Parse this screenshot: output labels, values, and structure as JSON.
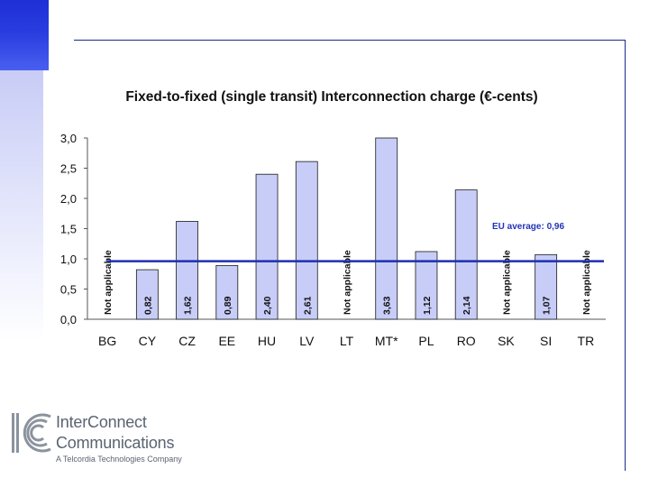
{
  "chart_data": {
    "type": "bar",
    "title": "Fixed-to-fixed (single transit) Interconnection charge (€-cents)",
    "categories": [
      "BG",
      "CY",
      "CZ",
      "EE",
      "HU",
      "LV",
      "LT",
      "MT*",
      "PL",
      "RO",
      "SK",
      "SI",
      "TR"
    ],
    "values": [
      null,
      0.82,
      1.62,
      0.89,
      2.4,
      2.61,
      null,
      3.63,
      1.12,
      2.14,
      null,
      1.07,
      null
    ],
    "bar_labels": [
      "Not applicable",
      "0,82",
      "1,62",
      "0,89",
      "2,40",
      "2,61",
      "Not applicable",
      "3,63",
      "1,12",
      "2,14",
      "Not applicable",
      "1,07",
      "Not applicable"
    ],
    "yticks": [
      "0,0",
      "0,5",
      "1,0",
      "1,5",
      "2,0",
      "2,5",
      "3,0"
    ],
    "ylim": [
      0,
      3.0
    ],
    "average_value": 0.96,
    "average_label": "EU average: 0,96",
    "bar_color": "#c7cdf7",
    "average_color": "#1f2fb0"
  },
  "logo": {
    "line1": "InterConnect",
    "line2": "Communications",
    "line3": "A Telcordia Technologies Company"
  }
}
